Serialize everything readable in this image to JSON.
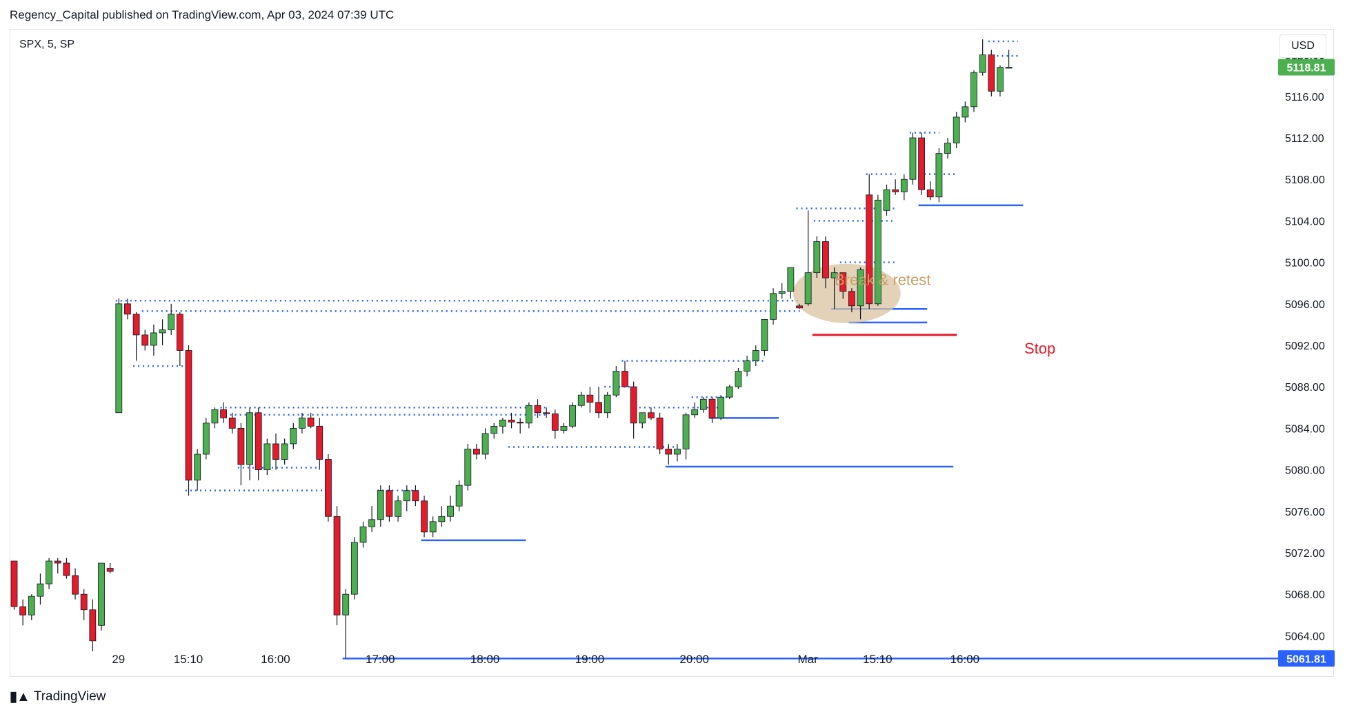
{
  "header": {
    "publisher_line": "Regency_Capital published on TradingView.com, Apr 03, 2024 07:39 UTC"
  },
  "symbol_line": "SPX, 5, SP",
  "currency_button": "USD",
  "brand": {
    "name": "TradingView",
    "logo_icon": "tradingview-logo-icon"
  },
  "colors": {
    "up": "#4caf50",
    "down": "#e31b2b",
    "wick": "#131722",
    "level_line": "#2962ff",
    "stop_line": "#e31b2b",
    "annotation_text": "#c8a066",
    "annotation_ellipse": "#d9c3a0",
    "grid": "#ffffff",
    "axis_text": "#131722"
  },
  "annotations": {
    "break_retest": "Break & retest",
    "stop": "Stop"
  },
  "chart_data": {
    "type": "candlestick",
    "symbol": "SPX",
    "interval": "5",
    "ylim": [
      5060.5,
      5122.5
    ],
    "y_ticks": [
      5064,
      5068,
      5072,
      5076,
      5080,
      5084,
      5088,
      5092,
      5096,
      5100,
      5104,
      5108,
      5112,
      5116,
      5120
    ],
    "y_tick_labels": [
      "5064.00",
      "5068.00",
      "5072.00",
      "5076.00",
      "5080.00",
      "5084.00",
      "5088.00",
      "5092.00",
      "5096.00",
      "5100.00",
      "5104.00",
      "5108.00",
      "5112.00",
      "5116.00",
      "5120.00"
    ],
    "x_ticks": [
      {
        "label": "29",
        "bar": 12
      },
      {
        "label": "15:10",
        "bar": 20
      },
      {
        "label": "16:00",
        "bar": 30
      },
      {
        "label": "17:00",
        "bar": 42
      },
      {
        "label": "18:00",
        "bar": 54
      },
      {
        "label": "19:00",
        "bar": 66
      },
      {
        "label": "20:00",
        "bar": 78
      },
      {
        "label": "Mar",
        "bar": 91
      },
      {
        "label": "15:10",
        "bar": 99
      },
      {
        "label": "16:00",
        "bar": 109
      }
    ],
    "last_price": {
      "value": 5118.81,
      "label": "5118.81",
      "color": "#4caf50"
    },
    "low_marker": {
      "value": 5061.81,
      "label": "5061.81",
      "color": "#2962ff"
    },
    "candles": [
      [
        5071.2,
        5071.2,
        5066.5,
        5066.8
      ],
      [
        5066.8,
        5067.5,
        5065.0,
        5066.0
      ],
      [
        5066.0,
        5068.0,
        5065.5,
        5067.8
      ],
      [
        5067.8,
        5070.0,
        5067.0,
        5069.0
      ],
      [
        5069.0,
        5071.5,
        5068.5,
        5071.2
      ],
      [
        5071.2,
        5071.5,
        5070.0,
        5071.0
      ],
      [
        5071.0,
        5071.5,
        5069.5,
        5069.8
      ],
      [
        5069.8,
        5070.5,
        5067.5,
        5068.0
      ],
      [
        5068.0,
        5068.5,
        5065.5,
        5066.5
      ],
      [
        5066.5,
        5067.5,
        5062.5,
        5063.5
      ],
      [
        5065.0,
        5071.0,
        5064.5,
        5071.0
      ],
      [
        5070.5,
        5071.0,
        5070.0,
        5070.2
      ],
      [
        5085.5,
        5096.5,
        5085.5,
        5096.0
      ],
      [
        5096.0,
        5096.5,
        5094.5,
        5095.0
      ],
      [
        5095.0,
        5095.2,
        5090.5,
        5093.0
      ],
      [
        5093.0,
        5093.5,
        5091.5,
        5092.0
      ],
      [
        5092.0,
        5094.0,
        5091.0,
        5093.2
      ],
      [
        5093.2,
        5094.5,
        5092.0,
        5093.5
      ],
      [
        5093.5,
        5096.0,
        5093.0,
        5095.0
      ],
      [
        5095.0,
        5095.2,
        5090.0,
        5091.5
      ],
      [
        5091.5,
        5092.0,
        5077.5,
        5079.0
      ],
      [
        5079.0,
        5082.0,
        5078.0,
        5081.5
      ],
      [
        5081.5,
        5085.0,
        5081.0,
        5084.5
      ],
      [
        5084.5,
        5086.0,
        5084.0,
        5085.8
      ],
      [
        5085.8,
        5086.5,
        5084.5,
        5085.0
      ],
      [
        5085.0,
        5085.5,
        5083.5,
        5084.0
      ],
      [
        5084.0,
        5084.5,
        5078.5,
        5080.5
      ],
      [
        5080.5,
        5086.0,
        5079.0,
        5085.5
      ],
      [
        5085.5,
        5086.0,
        5079.0,
        5080.0
      ],
      [
        5080.0,
        5083.0,
        5079.5,
        5082.5
      ],
      [
        5082.5,
        5083.5,
        5080.0,
        5081.0
      ],
      [
        5081.0,
        5083.0,
        5080.5,
        5082.5
      ],
      [
        5082.5,
        5084.5,
        5082.0,
        5084.0
      ],
      [
        5084.0,
        5085.5,
        5083.5,
        5085.0
      ],
      [
        5085.0,
        5085.5,
        5084.0,
        5084.2
      ],
      [
        5084.2,
        5085.0,
        5080.0,
        5081.0
      ],
      [
        5081.0,
        5081.5,
        5075.0,
        5075.5
      ],
      [
        5075.5,
        5076.5,
        5065.0,
        5066.0
      ],
      [
        5066.0,
        5068.5,
        5061.8,
        5068.0
      ],
      [
        5068.0,
        5073.5,
        5067.5,
        5073.0
      ],
      [
        5073.0,
        5075.0,
        5072.5,
        5074.5
      ],
      [
        5074.5,
        5076.5,
        5074.0,
        5075.2
      ],
      [
        5075.2,
        5078.5,
        5074.5,
        5078.0
      ],
      [
        5078.0,
        5078.5,
        5075.0,
        5075.5
      ],
      [
        5075.5,
        5077.5,
        5075.0,
        5077.0
      ],
      [
        5077.0,
        5078.5,
        5076.0,
        5078.0
      ],
      [
        5078.0,
        5078.5,
        5076.5,
        5077.0
      ],
      [
        5077.0,
        5077.5,
        5073.5,
        5074.0
      ],
      [
        5074.0,
        5075.5,
        5073.5,
        5075.0
      ],
      [
        5075.0,
        5076.5,
        5074.5,
        5075.5
      ],
      [
        5075.5,
        5077.5,
        5075.0,
        5076.5
      ],
      [
        5076.5,
        5079.0,
        5076.0,
        5078.5
      ],
      [
        5078.5,
        5082.5,
        5078.0,
        5082.0
      ],
      [
        5082.0,
        5082.5,
        5081.0,
        5081.5
      ],
      [
        5081.5,
        5084.0,
        5081.0,
        5083.5
      ],
      [
        5083.5,
        5084.5,
        5083.0,
        5084.2
      ],
      [
        5084.2,
        5085.0,
        5083.5,
        5084.8
      ],
      [
        5084.8,
        5085.5,
        5084.0,
        5084.6
      ],
      [
        5084.6,
        5085.0,
        5083.5,
        5084.5
      ],
      [
        5084.5,
        5086.5,
        5084.0,
        5086.2
      ],
      [
        5086.2,
        5086.8,
        5085.0,
        5085.5
      ],
      [
        5085.5,
        5086.0,
        5085.0,
        5085.4
      ],
      [
        5085.4,
        5085.8,
        5083.0,
        5083.8
      ],
      [
        5083.8,
        5084.5,
        5083.5,
        5084.2
      ],
      [
        5084.2,
        5086.5,
        5084.0,
        5086.2
      ],
      [
        5086.2,
        5087.5,
        5086.0,
        5087.2
      ],
      [
        5087.2,
        5088.0,
        5085.5,
        5086.5
      ],
      [
        5086.5,
        5088.0,
        5085.0,
        5085.5
      ],
      [
        5085.5,
        5087.5,
        5085.0,
        5087.2
      ],
      [
        5087.2,
        5090.0,
        5087.0,
        5089.5
      ],
      [
        5089.5,
        5090.5,
        5088.0,
        5088.0
      ],
      [
        5088.0,
        5088.5,
        5083.0,
        5084.5
      ],
      [
        5084.5,
        5085.5,
        5084.0,
        5085.5
      ],
      [
        5085.5,
        5086.0,
        5084.8,
        5085.0
      ],
      [
        5085.0,
        5085.5,
        5081.5,
        5082.0
      ],
      [
        5082.0,
        5082.5,
        5080.5,
        5081.5
      ],
      [
        5081.5,
        5082.5,
        5080.8,
        5082.0
      ],
      [
        5082.0,
        5085.5,
        5081.0,
        5085.3
      ],
      [
        5085.3,
        5086.5,
        5085.0,
        5085.8
      ],
      [
        5085.8,
        5087.0,
        5085.5,
        5086.8
      ],
      [
        5086.8,
        5087.0,
        5084.5,
        5085.0
      ],
      [
        5085.0,
        5087.2,
        5084.8,
        5087.0
      ],
      [
        5087.0,
        5088.2,
        5086.8,
        5088.0
      ],
      [
        5088.0,
        5089.8,
        5087.8,
        5089.5
      ],
      [
        5089.5,
        5091.0,
        5089.0,
        5090.5
      ],
      [
        5090.5,
        5092.0,
        5090.0,
        5091.5
      ],
      [
        5091.5,
        5094.5,
        5091.0,
        5094.5
      ],
      [
        5094.5,
        5097.5,
        5094.0,
        5097.0
      ],
      [
        5097.0,
        5098.0,
        5096.5,
        5097.2
      ],
      [
        5097.2,
        5099.5,
        5096.5,
        5099.5
      ],
      [
        5095.8,
        5096.0,
        5095.5,
        5095.6
      ],
      [
        5096.0,
        5105.0,
        5095.8,
        5099.0
      ],
      [
        5099.0,
        5102.5,
        5098.5,
        5102.0
      ],
      [
        5102.0,
        5102.5,
        5097.5,
        5098.5
      ],
      [
        5098.5,
        5099.5,
        5095.5,
        5099.0
      ],
      [
        5099.0,
        5099.0,
        5096.5,
        5097.2
      ],
      [
        5097.2,
        5097.5,
        5095.2,
        5095.8
      ],
      [
        5095.8,
        5099.5,
        5094.5,
        5099.3
      ],
      [
        5106.5,
        5108.5,
        5095.5,
        5096.0
      ],
      [
        5096.0,
        5106.5,
        5095.8,
        5106.0
      ],
      [
        5105.0,
        5107.5,
        5104.5,
        5107.0
      ],
      [
        5107.0,
        5108.0,
        5106.5,
        5106.8
      ],
      [
        5106.8,
        5108.5,
        5106.0,
        5108.0
      ],
      [
        5108.0,
        5112.5,
        5107.5,
        5112.0
      ],
      [
        5112.0,
        5112.5,
        5106.5,
        5107.0
      ],
      [
        5107.0,
        5107.8,
        5106.0,
        5106.3
      ],
      [
        5106.3,
        5111.0,
        5105.8,
        5110.5
      ],
      [
        5110.5,
        5112.0,
        5110.0,
        5111.5
      ],
      [
        5111.5,
        5114.5,
        5111.0,
        5114.0
      ],
      [
        5114.0,
        5115.5,
        5113.5,
        5115.0
      ],
      [
        5115.0,
        5118.5,
        5114.5,
        5118.3
      ],
      [
        5118.3,
        5121.5,
        5118.0,
        5120.0
      ],
      [
        5120.0,
        5120.5,
        5116.0,
        5116.5
      ],
      [
        5116.5,
        5119.0,
        5116.0,
        5118.8
      ],
      [
        5118.8,
        5120.5,
        5118.7,
        5118.81
      ]
    ]
  }
}
